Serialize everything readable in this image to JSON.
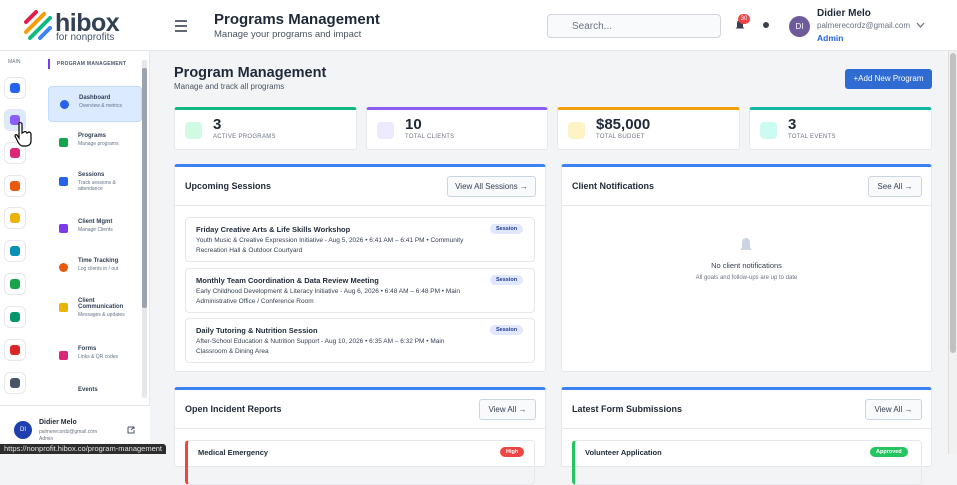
{
  "logo": {
    "name": "hibox",
    "tagline": "for nonprofits"
  },
  "header": {
    "title": "Programs Management",
    "subtitle": "Manage your programs and impact",
    "search": "Search...",
    "badge": "30",
    "user": {
      "initials": "DI",
      "name": "Didier Melo",
      "email": "palmerecordz@gmail.com",
      "role": "Admin"
    }
  },
  "rail": {
    "label": "MAIN"
  },
  "sidebar": {
    "section": "PROGRAM MANAGEMENT",
    "items": [
      {
        "title": "Dashboard",
        "sub": "Overview & metrics"
      },
      {
        "title": "Programs",
        "sub": "Manage programs"
      },
      {
        "title": "Sessions",
        "sub": "Track sessions & attendance"
      },
      {
        "title": "Client Mgmt",
        "sub": "Manage Clients"
      },
      {
        "title": "Time Tracking",
        "sub": "Log clients in / out"
      },
      {
        "title": "Client Communication",
        "sub": "Messages & updates"
      },
      {
        "title": "Forms",
        "sub": "Links & QR codes"
      },
      {
        "title": "Events"
      }
    ],
    "user": {
      "initials": "DI",
      "name": "Didier Melo",
      "email": "palmerecordz@gmail.com",
      "role": "Admin"
    }
  },
  "page": {
    "title": "Program Management",
    "subtitle": "Manage and track all programs",
    "button": "+Add New Program"
  },
  "stats": [
    {
      "value": "3",
      "label": "ACTIVE PROGRAMS"
    },
    {
      "value": "10",
      "label": "TOTAL CLIENTS"
    },
    {
      "value": "$85,000",
      "label": "TOTAL BUDGET"
    },
    {
      "value": "3",
      "label": "TOTAL EVENTS"
    }
  ],
  "sessions": {
    "title": "Upcoming Sessions",
    "link": "View All Sessions →",
    "items": [
      {
        "title": "Friday Creative Arts & Life Skills Workshop",
        "detail": "Youth Music & Creative Expression Initiative - Aug 5, 2026 • 6:41 AM – 6:41 PM • Community Recreation Hall & Outdoor Courtyard",
        "badge": "Session"
      },
      {
        "title": "Monthly Team Coordination & Data Review Meeting",
        "detail": "Early Childhood Development & Literacy Initiative - Aug 6, 2026 • 6:48 AM – 6:48 PM • Main Administrative Office / Conference Room",
        "badge": "Session"
      },
      {
        "title": "Daily Tutoring & Nutrition Session",
        "detail": "After-School Education & Nutrition Support - Aug 10, 2026 • 6:35 AM – 6:32 PM • Main Classroom & Dining Area",
        "badge": "Session"
      }
    ]
  },
  "notifications": {
    "title": "Client Notifications",
    "link": "See All →",
    "empty": "No client notifications",
    "empty_sub": "All goals and follow-ups are up to date"
  },
  "incidents": {
    "title": "Open Incident Reports",
    "link": "View All →",
    "items": [
      {
        "title": "Medical Emergency",
        "badge": "High"
      }
    ]
  },
  "forms": {
    "title": "Latest Form Submissions",
    "link": "View All →",
    "items": [
      {
        "title": "Volunteer Application",
        "badge": "Approved"
      }
    ]
  },
  "status_bar": "https://nonprofit.hibox.co/program-management"
}
